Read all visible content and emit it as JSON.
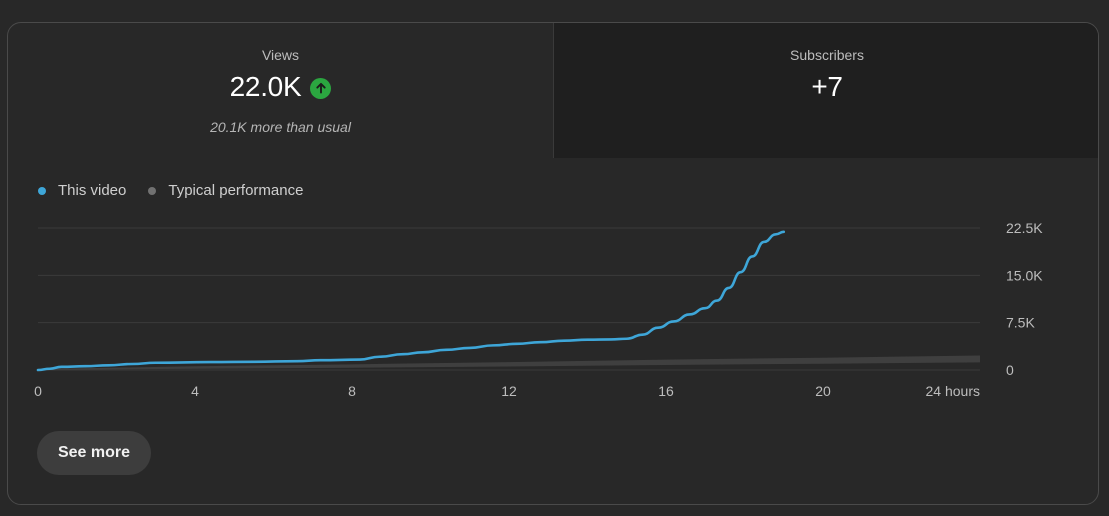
{
  "metrics": {
    "views": {
      "label": "Views",
      "value": "22.0K",
      "note": "20.1K more than usual",
      "trend_icon": "arrow-up-icon",
      "trend_color": "#2ba640"
    },
    "subscribers": {
      "label": "Subscribers",
      "value": "+7"
    }
  },
  "legend": {
    "this_video": "This video",
    "typical": "Typical performance"
  },
  "colors": {
    "this_video": "#3ea6d8",
    "typical": "#404040",
    "grid": "#3a3a3a",
    "axis_text": "#bdbdbd",
    "legend_typical_dot": "#717171"
  },
  "actions": {
    "see_more": "See more"
  },
  "chart_data": {
    "type": "line",
    "xlabel": "",
    "ylabel": "",
    "xlim": [
      0,
      24
    ],
    "ylim": [
      0,
      22500
    ],
    "x_ticks": [
      {
        "value": 0,
        "label": "0"
      },
      {
        "value": 4,
        "label": "4"
      },
      {
        "value": 8,
        "label": "8"
      },
      {
        "value": 12,
        "label": "12"
      },
      {
        "value": 16,
        "label": "16"
      },
      {
        "value": 20,
        "label": "20"
      },
      {
        "value": 24,
        "label": "24 hours"
      }
    ],
    "y_ticks": [
      {
        "value": 0,
        "label": "0"
      },
      {
        "value": 7500,
        "label": "7.5K"
      },
      {
        "value": 15000,
        "label": "15.0K"
      },
      {
        "value": 22500,
        "label": "22.5K"
      }
    ],
    "grid": true,
    "legend_position": "top-left",
    "series": [
      {
        "name": "This video",
        "style": "line",
        "points": [
          [
            0,
            0
          ],
          [
            0.3,
            200
          ],
          [
            0.6,
            500
          ],
          [
            1.2,
            600
          ],
          [
            1.8,
            750
          ],
          [
            2.4,
            950
          ],
          [
            3.0,
            1150
          ],
          [
            4.4,
            1250
          ],
          [
            5.5,
            1300
          ],
          [
            6.6,
            1400
          ],
          [
            7.2,
            1550
          ],
          [
            8.2,
            1650
          ],
          [
            8.7,
            2100
          ],
          [
            9.3,
            2500
          ],
          [
            9.8,
            2800
          ],
          [
            10.4,
            3200
          ],
          [
            11.0,
            3500
          ],
          [
            11.6,
            3900
          ],
          [
            12.2,
            4150
          ],
          [
            12.8,
            4400
          ],
          [
            13.4,
            4650
          ],
          [
            14.0,
            4800
          ],
          [
            14.6,
            4850
          ],
          [
            15.0,
            4950
          ],
          [
            15.4,
            5600
          ],
          [
            15.8,
            6700
          ],
          [
            16.2,
            7700
          ],
          [
            16.6,
            8800
          ],
          [
            17.0,
            9800
          ],
          [
            17.3,
            11000
          ],
          [
            17.6,
            13000
          ],
          [
            17.9,
            15500
          ],
          [
            18.2,
            18000
          ],
          [
            18.5,
            20300
          ],
          [
            18.8,
            21500
          ],
          [
            19.0,
            21900
          ]
        ]
      },
      {
        "name": "Typical performance",
        "style": "band",
        "lower": [
          [
            0,
            0
          ],
          [
            4,
            200
          ],
          [
            8,
            350
          ],
          [
            12,
            550
          ],
          [
            16,
            800
          ],
          [
            20,
            1000
          ],
          [
            24,
            1200
          ]
        ],
        "upper": [
          [
            0,
            150
          ],
          [
            4,
            600
          ],
          [
            8,
            900
          ],
          [
            12,
            1250
          ],
          [
            16,
            1650
          ],
          [
            20,
            1950
          ],
          [
            24,
            2300
          ]
        ]
      }
    ]
  }
}
